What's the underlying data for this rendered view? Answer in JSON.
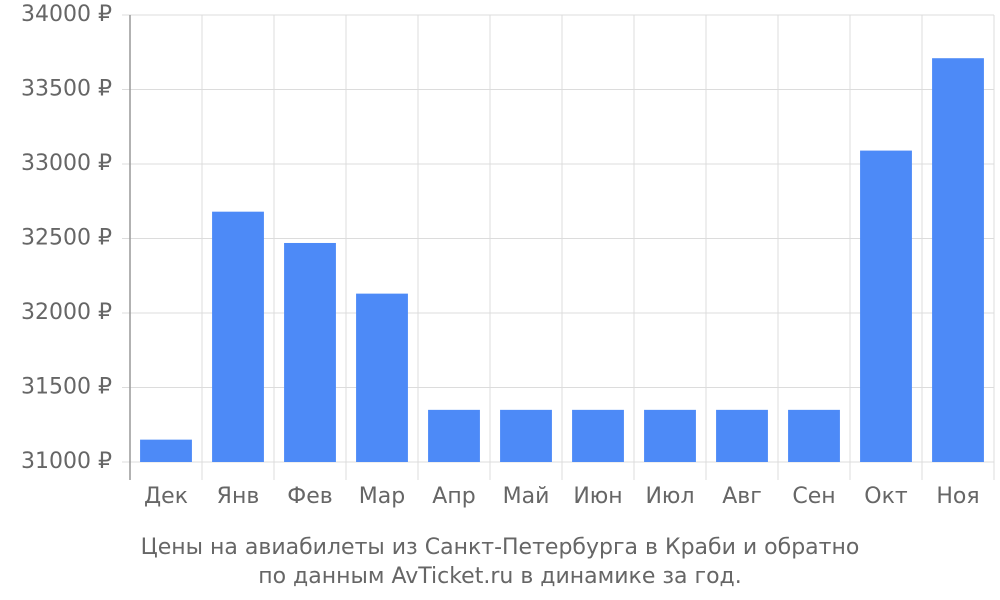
{
  "chart_data": {
    "type": "bar",
    "title": [
      "Цены на авиабилеты из Санкт-Петербурга в Краби и обратно",
      "по данным AvTicket.ru в динамике за год."
    ],
    "categories": [
      "Дек",
      "Янв",
      "Фев",
      "Мар",
      "Апр",
      "Май",
      "Июн",
      "Июл",
      "Авг",
      "Сен",
      "Окт",
      "Ноя"
    ],
    "values": [
      31150,
      32680,
      32470,
      32130,
      31350,
      31350,
      31350,
      31350,
      31350,
      31350,
      33090,
      33710
    ],
    "color": "#4d8af7",
    "ylim": [
      31000,
      34000
    ],
    "yticks": [
      {
        "value": 31000,
        "label": "31000 ₽"
      },
      {
        "value": 31500,
        "label": "31500 ₽"
      },
      {
        "value": 32000,
        "label": "32000 ₽"
      },
      {
        "value": 32500,
        "label": "32500 ₽"
      },
      {
        "value": 33000,
        "label": "33000 ₽"
      },
      {
        "value": 33500,
        "label": "33500 ₽"
      },
      {
        "value": 34000,
        "label": "34000 ₽"
      }
    ],
    "grid": true
  }
}
